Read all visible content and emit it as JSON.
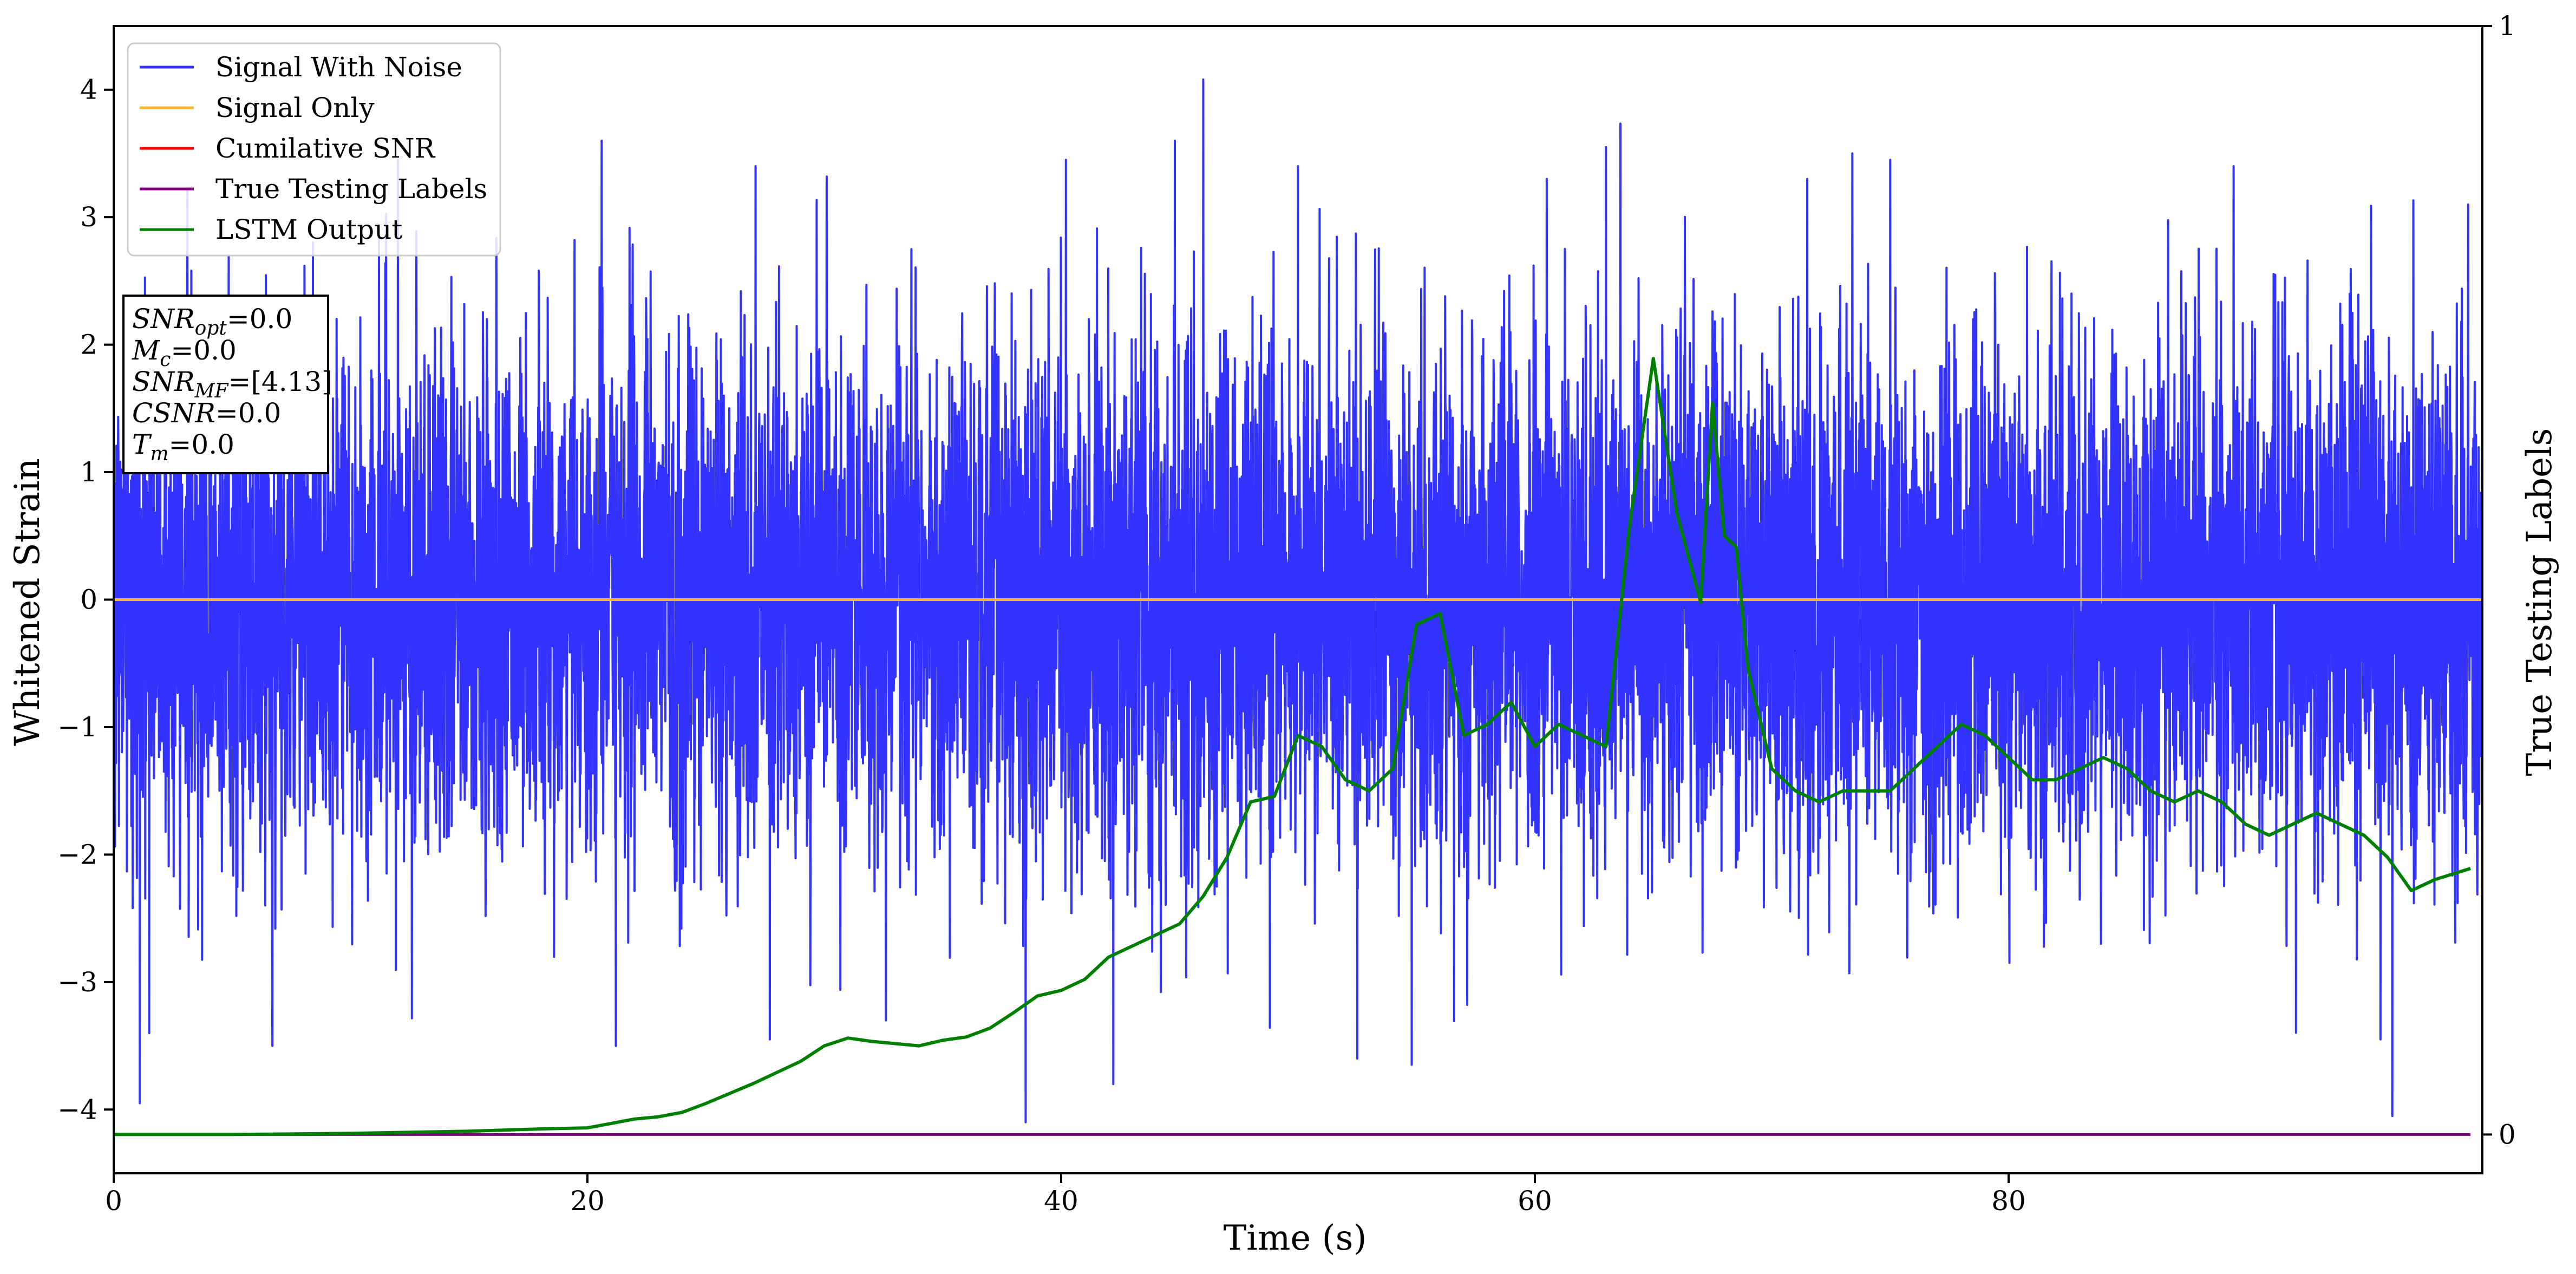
{
  "chart_data": {
    "type": "line",
    "xlabel": "Time (s)",
    "ylabel": "Whitened Strain",
    "y2label": "True Testing Labels",
    "xlim": [
      0,
      100
    ],
    "ylim": [
      -4.5,
      4.5
    ],
    "y2lim": [
      -0.035,
      1.0
    ],
    "x_ticks": [
      0,
      20,
      40,
      60,
      80
    ],
    "y_ticks": [
      -4,
      -3,
      -2,
      -1,
      0,
      1,
      2,
      3,
      4
    ],
    "y2_ticks": [
      0,
      1
    ],
    "legend": {
      "placement": "upper-left",
      "entries": [
        {
          "label": "Signal With Noise",
          "color": "#3333ff"
        },
        {
          "label": "Signal Only",
          "color": "#ffb733"
        },
        {
          "label": "Cumilative SNR",
          "color": "#ff0000"
        },
        {
          "label": "True Testing Labels",
          "color": "#800080"
        },
        {
          "label": "LSTM Output",
          "color": "#008000"
        }
      ]
    },
    "annotation": [
      {
        "sym": "SNR",
        "sub": "opt",
        "val": "=0.0"
      },
      {
        "sym": "M",
        "sub": "c",
        "val": "=0.0"
      },
      {
        "sym": "SNR",
        "sub": "MF",
        "val": "=[4.13]"
      },
      {
        "sym": "CSNR",
        "sub": "",
        "val": "=0.0"
      },
      {
        "sym": "T",
        "sub": "m",
        "val": "=0.0"
      }
    ],
    "series": [
      {
        "name": "Signal With Noise",
        "color": "#3333ff",
        "kind": "noise",
        "x_range": [
          0,
          100
        ],
        "approx_std": 1.0,
        "approx_max": 4.08,
        "approx_min": -4.1,
        "spikes": [
          [
            1.1,
            -3.95
          ],
          [
            1.5,
            -3.4
          ],
          [
            6.7,
            -3.5
          ],
          [
            12,
            3.45
          ],
          [
            20.6,
            3.6
          ],
          [
            21.2,
            -3.5
          ],
          [
            27.1,
            3.4
          ],
          [
            27.7,
            -3.45
          ],
          [
            32.6,
            -3.3
          ],
          [
            40.2,
            3.45
          ],
          [
            38.5,
            -4.1
          ],
          [
            42.2,
            -3.8
          ],
          [
            44.8,
            3.6
          ],
          [
            46,
            4.08
          ],
          [
            50,
            3.4
          ],
          [
            52.5,
            -3.6
          ],
          [
            60.5,
            3.3
          ],
          [
            63,
            3.55
          ],
          [
            71.5,
            3.3
          ],
          [
            73.4,
            3.5
          ],
          [
            75,
            3.45
          ],
          [
            89.5,
            3.4
          ],
          [
            95.7,
            -3.45
          ],
          [
            96.2,
            -4.05
          ],
          [
            99.4,
            3.1
          ]
        ]
      },
      {
        "name": "Signal Only",
        "color": "#ffb733",
        "x": [
          0,
          100
        ],
        "y": [
          0,
          0
        ]
      },
      {
        "name": "True Testing Labels",
        "color": "#800080",
        "axis": "right",
        "x": [
          0,
          99.5
        ],
        "y": [
          0,
          0
        ]
      },
      {
        "name": "LSTM Output",
        "color": "#008000",
        "axis": "right",
        "x": [
          0,
          5,
          10,
          15,
          18,
          20,
          21,
          22,
          23,
          24,
          25,
          26,
          27,
          28,
          29,
          30,
          31,
          32,
          33,
          34,
          35,
          36,
          37,
          38,
          39,
          40,
          41,
          42,
          43,
          44,
          45,
          46,
          47,
          48,
          49,
          50,
          51,
          52,
          53,
          54,
          55,
          56,
          57,
          58,
          59,
          60,
          61,
          62,
          63,
          64,
          65,
          66,
          66.5,
          67,
          67.5,
          68,
          68.5,
          69,
          70,
          71,
          72,
          73,
          74,
          75,
          76,
          77,
          78,
          79,
          80,
          81,
          82,
          83,
          84,
          85,
          86,
          87,
          88,
          89,
          90,
          91,
          92,
          93,
          94,
          95,
          96,
          97,
          98,
          99.5
        ],
        "y": [
          0.0,
          0.0,
          0.001,
          0.003,
          0.005,
          0.006,
          0.01,
          0.014,
          0.016,
          0.02,
          0.028,
          0.037,
          0.046,
          0.056,
          0.066,
          0.08,
          0.087,
          0.084,
          0.082,
          0.08,
          0.085,
          0.088,
          0.096,
          0.11,
          0.125,
          0.13,
          0.14,
          0.16,
          0.17,
          0.18,
          0.19,
          0.215,
          0.25,
          0.3,
          0.305,
          0.36,
          0.35,
          0.32,
          0.31,
          0.33,
          0.46,
          0.47,
          0.36,
          0.37,
          0.39,
          0.35,
          0.37,
          0.36,
          0.35,
          0.55,
          0.7,
          0.56,
          0.52,
          0.48,
          0.66,
          0.54,
          0.53,
          0.42,
          0.33,
          0.31,
          0.3,
          0.31,
          0.31,
          0.31,
          0.33,
          0.35,
          0.37,
          0.36,
          0.34,
          0.32,
          0.32,
          0.33,
          0.34,
          0.33,
          0.31,
          0.3,
          0.31,
          0.3,
          0.28,
          0.27,
          0.28,
          0.29,
          0.28,
          0.27,
          0.25,
          0.22,
          0.23,
          0.24
        ]
      }
    ]
  }
}
